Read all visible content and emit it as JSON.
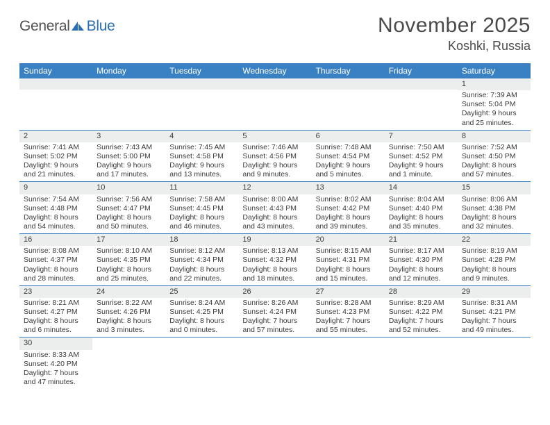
{
  "logo": {
    "textA": "General",
    "textB": "Blue"
  },
  "title": "November 2025",
  "location": "Koshki, Russia",
  "colors": {
    "header_bg": "#3a81c4",
    "header_text": "#ffffff",
    "daynum_bg": "#eceded",
    "row_border": "#3a81c4",
    "body_text": "#3a3a3a",
    "logo_blue": "#2a6fb5"
  },
  "daysOfWeek": [
    "Sunday",
    "Monday",
    "Tuesday",
    "Wednesday",
    "Thursday",
    "Friday",
    "Saturday"
  ],
  "weeks": [
    [
      null,
      null,
      null,
      null,
      null,
      null,
      {
        "n": "1",
        "sunrise": "7:39 AM",
        "sunset": "5:04 PM",
        "daylight": "9 hours and 25 minutes."
      }
    ],
    [
      {
        "n": "2",
        "sunrise": "7:41 AM",
        "sunset": "5:02 PM",
        "daylight": "9 hours and 21 minutes."
      },
      {
        "n": "3",
        "sunrise": "7:43 AM",
        "sunset": "5:00 PM",
        "daylight": "9 hours and 17 minutes."
      },
      {
        "n": "4",
        "sunrise": "7:45 AM",
        "sunset": "4:58 PM",
        "daylight": "9 hours and 13 minutes."
      },
      {
        "n": "5",
        "sunrise": "7:46 AM",
        "sunset": "4:56 PM",
        "daylight": "9 hours and 9 minutes."
      },
      {
        "n": "6",
        "sunrise": "7:48 AM",
        "sunset": "4:54 PM",
        "daylight": "9 hours and 5 minutes."
      },
      {
        "n": "7",
        "sunrise": "7:50 AM",
        "sunset": "4:52 PM",
        "daylight": "9 hours and 1 minute."
      },
      {
        "n": "8",
        "sunrise": "7:52 AM",
        "sunset": "4:50 PM",
        "daylight": "8 hours and 57 minutes."
      }
    ],
    [
      {
        "n": "9",
        "sunrise": "7:54 AM",
        "sunset": "4:48 PM",
        "daylight": "8 hours and 54 minutes."
      },
      {
        "n": "10",
        "sunrise": "7:56 AM",
        "sunset": "4:47 PM",
        "daylight": "8 hours and 50 minutes."
      },
      {
        "n": "11",
        "sunrise": "7:58 AM",
        "sunset": "4:45 PM",
        "daylight": "8 hours and 46 minutes."
      },
      {
        "n": "12",
        "sunrise": "8:00 AM",
        "sunset": "4:43 PM",
        "daylight": "8 hours and 43 minutes."
      },
      {
        "n": "13",
        "sunrise": "8:02 AM",
        "sunset": "4:42 PM",
        "daylight": "8 hours and 39 minutes."
      },
      {
        "n": "14",
        "sunrise": "8:04 AM",
        "sunset": "4:40 PM",
        "daylight": "8 hours and 35 minutes."
      },
      {
        "n": "15",
        "sunrise": "8:06 AM",
        "sunset": "4:38 PM",
        "daylight": "8 hours and 32 minutes."
      }
    ],
    [
      {
        "n": "16",
        "sunrise": "8:08 AM",
        "sunset": "4:37 PM",
        "daylight": "8 hours and 28 minutes."
      },
      {
        "n": "17",
        "sunrise": "8:10 AM",
        "sunset": "4:35 PM",
        "daylight": "8 hours and 25 minutes."
      },
      {
        "n": "18",
        "sunrise": "8:12 AM",
        "sunset": "4:34 PM",
        "daylight": "8 hours and 22 minutes."
      },
      {
        "n": "19",
        "sunrise": "8:13 AM",
        "sunset": "4:32 PM",
        "daylight": "8 hours and 18 minutes."
      },
      {
        "n": "20",
        "sunrise": "8:15 AM",
        "sunset": "4:31 PM",
        "daylight": "8 hours and 15 minutes."
      },
      {
        "n": "21",
        "sunrise": "8:17 AM",
        "sunset": "4:30 PM",
        "daylight": "8 hours and 12 minutes."
      },
      {
        "n": "22",
        "sunrise": "8:19 AM",
        "sunset": "4:28 PM",
        "daylight": "8 hours and 9 minutes."
      }
    ],
    [
      {
        "n": "23",
        "sunrise": "8:21 AM",
        "sunset": "4:27 PM",
        "daylight": "8 hours and 6 minutes."
      },
      {
        "n": "24",
        "sunrise": "8:22 AM",
        "sunset": "4:26 PM",
        "daylight": "8 hours and 3 minutes."
      },
      {
        "n": "25",
        "sunrise": "8:24 AM",
        "sunset": "4:25 PM",
        "daylight": "8 hours and 0 minutes."
      },
      {
        "n": "26",
        "sunrise": "8:26 AM",
        "sunset": "4:24 PM",
        "daylight": "7 hours and 57 minutes."
      },
      {
        "n": "27",
        "sunrise": "8:28 AM",
        "sunset": "4:23 PM",
        "daylight": "7 hours and 55 minutes."
      },
      {
        "n": "28",
        "sunrise": "8:29 AM",
        "sunset": "4:22 PM",
        "daylight": "7 hours and 52 minutes."
      },
      {
        "n": "29",
        "sunrise": "8:31 AM",
        "sunset": "4:21 PM",
        "daylight": "7 hours and 49 minutes."
      }
    ],
    [
      {
        "n": "30",
        "sunrise": "8:33 AM",
        "sunset": "4:20 PM",
        "daylight": "7 hours and 47 minutes."
      },
      null,
      null,
      null,
      null,
      null,
      null
    ]
  ],
  "labels": {
    "sunrise": "Sunrise: ",
    "sunset": "Sunset: ",
    "daylight": "Daylight: "
  }
}
